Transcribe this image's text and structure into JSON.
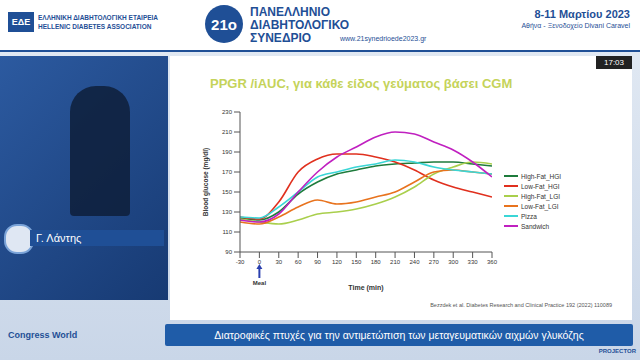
{
  "chart_data": {
    "type": "line",
    "title": "PPGR /iAUC, για κάθε είδος γεύματος βάσει CGM",
    "x_label": "Time (min)",
    "y_label": "Blood glucose (mg/dl)",
    "x": [
      -30,
      0,
      30,
      60,
      90,
      120,
      150,
      180,
      210,
      240,
      270,
      300,
      330,
      360
    ],
    "series": [
      {
        "name": "High-Fat_HGI",
        "color": "#1e7b3c",
        "values": [
          124,
          122,
          130,
          148,
          160,
          168,
          172,
          176,
          178,
          179,
          180,
          180,
          178,
          176
        ]
      },
      {
        "name": "Low-Fat_HGI",
        "color": "#e0301e",
        "values": [
          125,
          123,
          140,
          170,
          183,
          188,
          188,
          185,
          180,
          172,
          162,
          155,
          150,
          145
        ]
      },
      {
        "name": "High-Fat_LGI",
        "color": "#a9cf4c",
        "values": [
          123,
          120,
          118,
          122,
          128,
          130,
          133,
          138,
          145,
          155,
          168,
          175,
          180,
          178
        ]
      },
      {
        "name": "Low-Fat_LGI",
        "color": "#e8731e",
        "values": [
          120,
          118,
          125,
          135,
          142,
          138,
          140,
          145,
          150,
          160,
          170,
          172,
          170,
          168
        ]
      },
      {
        "name": "Pizza",
        "color": "#3ad6d6",
        "values": [
          125,
          124,
          135,
          150,
          165,
          170,
          175,
          178,
          182,
          180,
          175,
          172,
          170,
          168
        ]
      },
      {
        "name": "Sandwich",
        "color": "#c020c0",
        "values": [
          122,
          120,
          128,
          150,
          170,
          185,
          195,
          205,
          210,
          208,
          200,
          192,
          180,
          165
        ]
      }
    ],
    "xlim": [
      -30,
      360
    ],
    "xticks": [
      -30,
      0,
      30,
      60,
      90,
      120,
      150,
      180,
      210,
      240,
      270,
      300,
      330,
      360
    ],
    "ylim": [
      90,
      230
    ],
    "yticks": [
      90,
      110,
      130,
      150,
      170,
      190,
      210,
      230
    ],
    "grid": false,
    "legend": "right",
    "annotations": [
      {
        "text": "Meal",
        "x": 0
      }
    ],
    "source": "Bezzdek et al. Diabetes Research and Clinical Practice 192 (2022) 110089"
  },
  "page": {
    "header": {
      "logo": "ΕΔΕ",
      "society_gr": "ΕΛΛΗΝΙΚΗ ΔΙΑΒΗΤΟΛΟΓΙΚΗ ΕΤΑΙΡΕΙΑ",
      "society_en": "HELLENIC DIABETES ASSOCIATION",
      "edition": "21ο",
      "congress": "ΠΑΝΕΛΛΗΝΙΟ ΔΙΑΒΗΤΟΛΟΓΙΚΟ ΣΥΝΕΔΡΙΟ",
      "website": "www.21synedrioede2023.gr",
      "dates": "8-11 Μαρτίου 2023",
      "venue": "Αθήνα - Ξενοδοχείο Divani Caravel"
    },
    "speaker": "Γ. Λάντης",
    "clock": "17:03",
    "caption": "Διατροφικές πτυχές για την αντιμετώπιση των μεταγευματικών αιχμών γλυκόζης",
    "footer_logo": "Congress World",
    "sponsor": "PROJECTOR"
  }
}
